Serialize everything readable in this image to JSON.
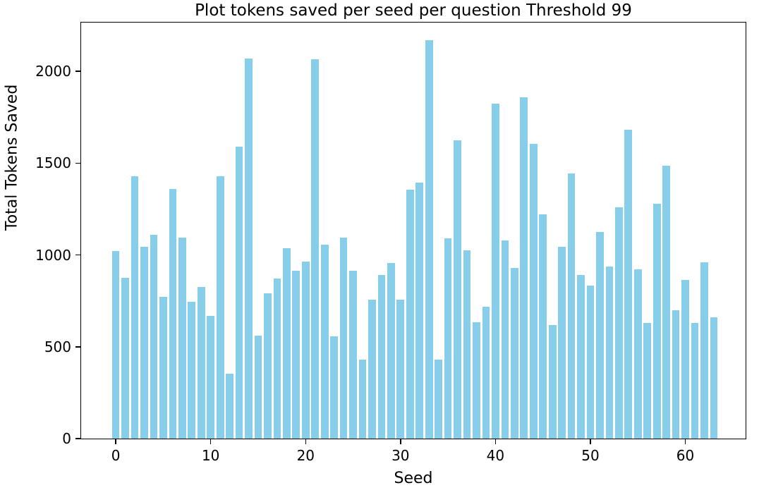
{
  "chart_data": {
    "type": "bar",
    "title": "Plot tokens saved per seed per question Threshold 99",
    "xlabel": "Seed",
    "ylabel": "Total Tokens Saved",
    "x_note": "seed index 0-63, one bar per seed",
    "x": [
      0,
      1,
      2,
      3,
      4,
      5,
      6,
      7,
      8,
      9,
      10,
      11,
      12,
      13,
      14,
      15,
      16,
      17,
      18,
      19,
      20,
      21,
      22,
      23,
      24,
      25,
      26,
      27,
      28,
      29,
      30,
      31,
      32,
      33,
      34,
      35,
      36,
      37,
      38,
      39,
      40,
      41,
      42,
      43,
      44,
      45,
      46,
      47,
      48,
      49,
      50,
      51,
      52,
      53,
      54,
      55,
      56,
      57,
      58,
      59,
      60,
      61,
      62,
      63
    ],
    "values": [
      1020,
      875,
      1430,
      1045,
      1110,
      770,
      1360,
      1095,
      745,
      825,
      670,
      1430,
      355,
      1590,
      2070,
      560,
      790,
      870,
      1035,
      915,
      965,
      2065,
      1055,
      555,
      1095,
      915,
      430,
      755,
      890,
      955,
      755,
      1355,
      1395,
      2170,
      430,
      1090,
      1625,
      1025,
      635,
      720,
      1825,
      1080,
      930,
      1860,
      1605,
      1220,
      620,
      1045,
      1445,
      890,
      835,
      1125,
      935,
      1260,
      1680,
      920,
      630,
      1280,
      1485,
      700,
      865,
      630,
      960,
      660
    ],
    "x_ticks": [
      0,
      10,
      20,
      30,
      40,
      50,
      60
    ],
    "y_ticks": [
      0,
      500,
      1000,
      1500,
      2000
    ],
    "xlim": [
      -3.65,
      66.35
    ],
    "ylim": [
      0,
      2265
    ],
    "bar_width_fraction": 0.8,
    "bar_color": "#87CEEB",
    "spine_color": "#000000",
    "text_color": "#000000",
    "background_color": "#ffffff",
    "grid": "off",
    "legend": "none"
  }
}
